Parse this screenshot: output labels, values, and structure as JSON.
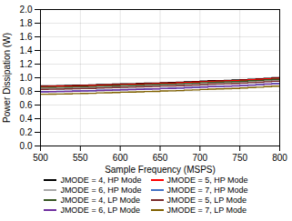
{
  "chart_data": {
    "type": "step",
    "xlabel": "Sample Frequency (MSPS)",
    "ylabel": "Power Dissipation (W)",
    "xlim": [
      500,
      800
    ],
    "ylim": [
      0,
      2
    ],
    "xticks": [
      500,
      550,
      600,
      650,
      700,
      750,
      800
    ],
    "yticks": [
      {
        "value": 0,
        "label": "0.0"
      },
      0.2,
      0.4,
      0.6,
      0.8,
      {
        "value": 1.0,
        "label": "1.0"
      },
      1.2,
      1.4,
      1.6,
      1.8,
      {
        "value": 2.0,
        "label": "2.0"
      }
    ],
    "grid": true,
    "legend": "bottom",
    "x": [
      500,
      510,
      520,
      530,
      540,
      550,
      560,
      570,
      580,
      590,
      600,
      610,
      620,
      630,
      640,
      650,
      660,
      670,
      680,
      690,
      700,
      710,
      720,
      730,
      740,
      750,
      760,
      770,
      780,
      790,
      800
    ],
    "series": [
      {
        "name": "JMODE = 4, HP Mode",
        "color": "#000000",
        "values": [
          0.88,
          0.882,
          0.884,
          0.886,
          0.89,
          0.892,
          0.894,
          0.9,
          0.902,
          0.906,
          0.91,
          0.912,
          0.916,
          0.92,
          0.922,
          0.928,
          0.93,
          0.934,
          0.94,
          0.944,
          0.95,
          0.956,
          0.958,
          0.962,
          0.966,
          0.972,
          0.978,
          0.984,
          0.992,
          1.0,
          1.01
        ]
      },
      {
        "name": "JMODE = 5, HP Mode",
        "color": "#ff0000",
        "values": [
          0.872,
          0.874,
          0.876,
          0.878,
          0.882,
          0.884,
          0.886,
          0.892,
          0.894,
          0.898,
          0.902,
          0.904,
          0.908,
          0.912,
          0.914,
          0.92,
          0.922,
          0.926,
          0.932,
          0.936,
          0.942,
          0.948,
          0.95,
          0.954,
          0.958,
          0.964,
          0.97,
          0.976,
          0.984,
          0.992,
          1.002
        ]
      },
      {
        "name": "JMODE = 6, HP Mode",
        "color": "#aaaaaa",
        "values": [
          0.838,
          0.84,
          0.842,
          0.844,
          0.848,
          0.85,
          0.852,
          0.858,
          0.86,
          0.864,
          0.868,
          0.87,
          0.874,
          0.878,
          0.88,
          0.886,
          0.888,
          0.892,
          0.898,
          0.902,
          0.908,
          0.914,
          0.916,
          0.92,
          0.924,
          0.93,
          0.936,
          0.942,
          0.95,
          0.958,
          0.966
        ]
      },
      {
        "name": "JMODE = 7, HP Mode",
        "color": "#4472c4",
        "values": [
          0.796,
          0.798,
          0.8,
          0.802,
          0.806,
          0.808,
          0.81,
          0.816,
          0.818,
          0.822,
          0.826,
          0.828,
          0.832,
          0.836,
          0.838,
          0.844,
          0.846,
          0.85,
          0.856,
          0.86,
          0.866,
          0.872,
          0.874,
          0.878,
          0.882,
          0.888,
          0.894,
          0.9,
          0.908,
          0.916,
          0.924
        ]
      },
      {
        "name": "JMODE = 4, LP Mode",
        "color": "#375623",
        "values": [
          0.858,
          0.86,
          0.862,
          0.864,
          0.868,
          0.87,
          0.872,
          0.878,
          0.88,
          0.884,
          0.888,
          0.89,
          0.894,
          0.898,
          0.9,
          0.906,
          0.908,
          0.912,
          0.918,
          0.922,
          0.928,
          0.934,
          0.936,
          0.94,
          0.944,
          0.95,
          0.956,
          0.962,
          0.97,
          0.976,
          0.982
        ]
      },
      {
        "name": "JMODE = 5, LP Mode",
        "color": "#7b2c2c",
        "values": [
          0.83,
          0.832,
          0.834,
          0.836,
          0.84,
          0.842,
          0.844,
          0.85,
          0.852,
          0.856,
          0.86,
          0.862,
          0.866,
          0.87,
          0.872,
          0.878,
          0.88,
          0.884,
          0.89,
          0.894,
          0.9,
          0.906,
          0.908,
          0.912,
          0.916,
          0.922,
          0.928,
          0.934,
          0.942,
          0.948,
          0.954
        ]
      },
      {
        "name": "JMODE = 6, LP Mode",
        "color": "#7030a0",
        "values": [
          0.794,
          0.796,
          0.798,
          0.8,
          0.804,
          0.806,
          0.808,
          0.814,
          0.816,
          0.82,
          0.824,
          0.826,
          0.83,
          0.834,
          0.836,
          0.842,
          0.844,
          0.848,
          0.854,
          0.858,
          0.864,
          0.87,
          0.872,
          0.876,
          0.88,
          0.886,
          0.892,
          0.898,
          0.906,
          0.912,
          0.918
        ]
      },
      {
        "name": "JMODE = 7, LP Mode",
        "color": "#7f6000",
        "values": [
          0.758,
          0.76,
          0.762,
          0.764,
          0.768,
          0.77,
          0.772,
          0.778,
          0.78,
          0.784,
          0.788,
          0.79,
          0.794,
          0.798,
          0.8,
          0.806,
          0.808,
          0.812,
          0.818,
          0.822,
          0.828,
          0.834,
          0.836,
          0.84,
          0.844,
          0.85,
          0.856,
          0.862,
          0.87,
          0.876,
          0.882
        ]
      }
    ]
  }
}
